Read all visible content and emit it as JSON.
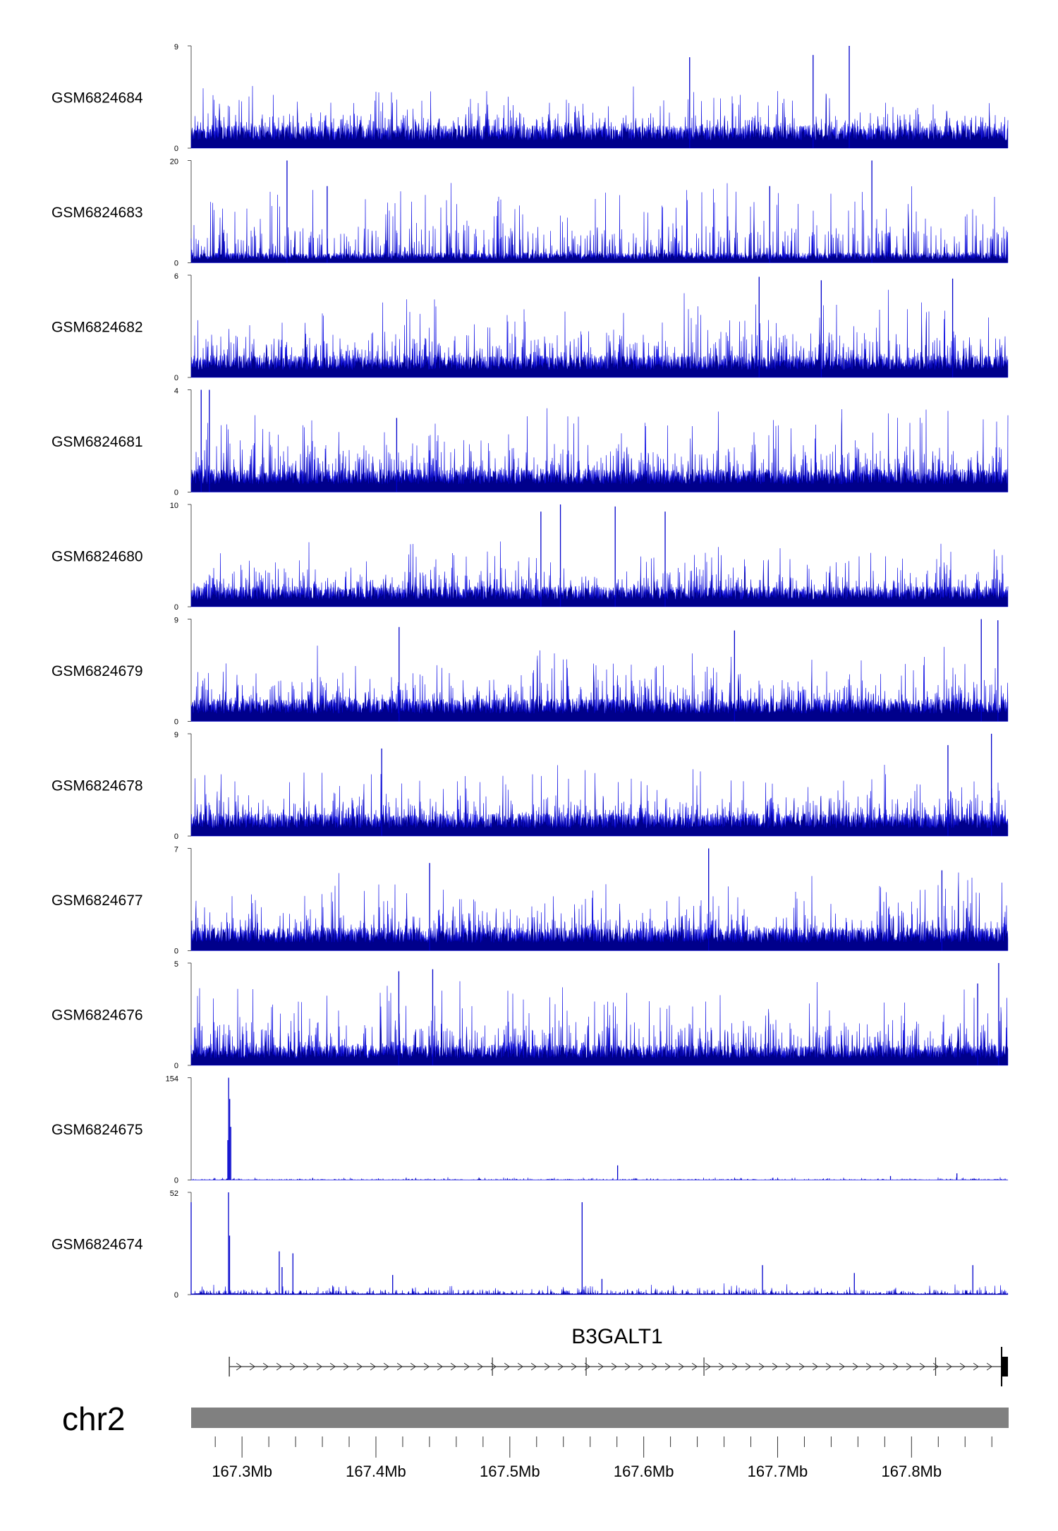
{
  "chart_data": {
    "type": "area",
    "chromosome": "chr2",
    "gene": {
      "name": "B3GALT1",
      "start_mb": 167.2905,
      "end_mb": 167.8715,
      "strand": "+",
      "internal_marks_mb": [
        167.487,
        167.557,
        167.645,
        167.818
      ]
    },
    "x_range_mb": [
      167.262,
      167.872
    ],
    "x_ticks": [
      {
        "value": 167.3,
        "label": "167.3Mb"
      },
      {
        "value": 167.4,
        "label": "167.4Mb"
      },
      {
        "value": 167.5,
        "label": "167.5Mb"
      },
      {
        "value": 167.6,
        "label": "167.6Mb"
      },
      {
        "value": 167.7,
        "label": "167.7Mb"
      },
      {
        "value": 167.8,
        "label": "167.8Mb"
      }
    ],
    "minor_tick_step_mb": 0.02,
    "tracks": [
      {
        "name": "GSM6824684",
        "ymax": 9,
        "ymax_label": "9",
        "ymin_label": "0",
        "baseline": 2,
        "noise": 1.4,
        "peaks": [
          {
            "x": 167.7535,
            "v": 9.0
          },
          {
            "x": 167.6343,
            "v": 8.0
          },
          {
            "x": 167.7265,
            "v": 8.2
          }
        ]
      },
      {
        "name": "GSM6824683",
        "ymax": 20,
        "ymax_label": "20",
        "ymin_label": "0",
        "baseline": 2,
        "noise": 5.5,
        "peaks": [
          {
            "x": 167.3336,
            "v": 20.0
          },
          {
            "x": 167.7704,
            "v": 20.0
          },
          {
            "x": 167.3636,
            "v": 15.0
          },
          {
            "x": 167.6941,
            "v": 15.0
          }
        ]
      },
      {
        "name": "GSM6824682",
        "ymax": 6,
        "ymax_label": "6",
        "ymin_label": "0",
        "baseline": 1.3,
        "noise": 1.5,
        "peaks": [
          {
            "x": 167.6862,
            "v": 5.9
          },
          {
            "x": 167.8307,
            "v": 5.8
          },
          {
            "x": 167.7326,
            "v": 5.7
          }
        ]
      },
      {
        "name": "GSM6824681",
        "ymax": 4,
        "ymax_label": "4",
        "ymin_label": "0",
        "baseline": 0.9,
        "noise": 1.0,
        "peaks": [
          {
            "x": 167.2695,
            "v": 4.0
          },
          {
            "x": 167.2756,
            "v": 4.0
          },
          {
            "x": 167.4155,
            "v": 2.9
          }
        ]
      },
      {
        "name": "GSM6824680",
        "ymax": 10,
        "ymax_label": "10",
        "ymin_label": "0",
        "baseline": 2,
        "noise": 1.9,
        "peaks": [
          {
            "x": 167.5378,
            "v": 10.0
          },
          {
            "x": 167.5232,
            "v": 9.3
          },
          {
            "x": 167.5787,
            "v": 9.8
          },
          {
            "x": 167.616,
            "v": 9.3
          }
        ]
      },
      {
        "name": "GSM6824679",
        "ymax": 9,
        "ymax_label": "9",
        "ymin_label": "0",
        "baseline": 2,
        "noise": 1.8,
        "peaks": [
          {
            "x": 167.8521,
            "v": 9.0
          },
          {
            "x": 167.4173,
            "v": 8.3
          },
          {
            "x": 167.8645,
            "v": 8.9
          },
          {
            "x": 167.6678,
            "v": 8.0
          }
        ]
      },
      {
        "name": "GSM6824678",
        "ymax": 9,
        "ymax_label": "9",
        "ymin_label": "0",
        "baseline": 2,
        "noise": 1.7,
        "peaks": [
          {
            "x": 167.8597,
            "v": 9.0
          },
          {
            "x": 167.4043,
            "v": 7.7
          },
          {
            "x": 167.8272,
            "v": 8.0
          }
        ]
      },
      {
        "name": "GSM6824677",
        "ymax": 7,
        "ymax_label": "7",
        "ymin_label": "0",
        "baseline": 1.6,
        "noise": 1.5,
        "peaks": [
          {
            "x": 167.6485,
            "v": 7.0
          },
          {
            "x": 167.4401,
            "v": 6.0
          },
          {
            "x": 167.8227,
            "v": 5.5
          }
        ]
      },
      {
        "name": "GSM6824676",
        "ymax": 5,
        "ymax_label": "5",
        "ymin_label": "0",
        "baseline": 1,
        "noise": 1.3,
        "peaks": [
          {
            "x": 167.8651,
            "v": 5.0
          },
          {
            "x": 167.4171,
            "v": 4.6
          },
          {
            "x": 167.4424,
            "v": 4.7
          },
          {
            "x": 167.8494,
            "v": 4.0
          }
        ]
      },
      {
        "name": "GSM6824675",
        "ymax": 154,
        "ymax_label": "154",
        "ymin_label": "0",
        "baseline": 0.5,
        "noise": 1.5,
        "peaks": [
          {
            "x": 167.29,
            "v": 154.0
          },
          {
            "x": 167.2908,
            "v": 122.0
          },
          {
            "x": 167.2916,
            "v": 80.0
          },
          {
            "x": 167.2894,
            "v": 60.0
          },
          {
            "x": 167.5805,
            "v": 22.0
          },
          {
            "x": 167.8339,
            "v": 10.0
          },
          {
            "x": 167.7843,
            "v": 6.0
          }
        ]
      },
      {
        "name": "GSM6824674",
        "ymax": 52,
        "ymax_label": "52",
        "ymin_label": "0",
        "baseline": 0.7,
        "noise": 2.0,
        "peaks": [
          {
            "x": 167.262,
            "v": 47.0
          },
          {
            "x": 167.2899,
            "v": 52.0
          },
          {
            "x": 167.2907,
            "v": 30.0
          },
          {
            "x": 167.3278,
            "v": 22.0
          },
          {
            "x": 167.3299,
            "v": 14.0
          },
          {
            "x": 167.338,
            "v": 21.0
          },
          {
            "x": 167.554,
            "v": 47.0
          },
          {
            "x": 167.4125,
            "v": 10.0
          },
          {
            "x": 167.6887,
            "v": 15.0
          },
          {
            "x": 167.8458,
            "v": 15.0
          },
          {
            "x": 167.7573,
            "v": 11.0
          },
          {
            "x": 167.5688,
            "v": 8.0
          }
        ]
      }
    ]
  }
}
